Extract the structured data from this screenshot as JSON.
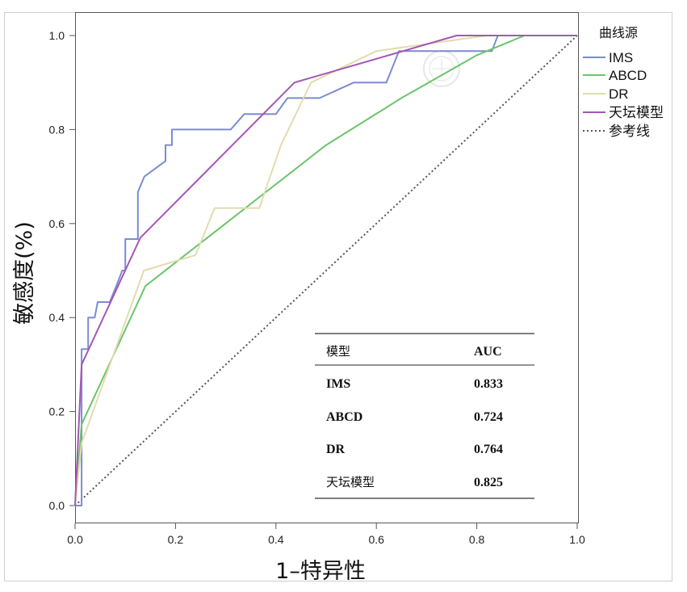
{
  "chart_data": {
    "type": "line",
    "xlabel": "1–特异性",
    "ylabel": "敏感度(%)",
    "xlim": [
      0,
      1
    ],
    "ylim": [
      0,
      1
    ],
    "x_ticks": [
      "0.0",
      "0.2",
      "0.4",
      "0.6",
      "0.8",
      "1.0"
    ],
    "y_ticks": [
      "0.0",
      "0.2",
      "0.4",
      "0.6",
      "0.8",
      "1.0"
    ],
    "grid": false,
    "legend": {
      "title": "曲线源",
      "placement": "right"
    },
    "series": [
      {
        "name": "IMS",
        "color": "#7b8ccf",
        "points": [
          [
            0,
            0
          ],
          [
            0.013,
            0
          ],
          [
            0.013,
            0.333
          ],
          [
            0.026,
            0.333
          ],
          [
            0.026,
            0.4
          ],
          [
            0.039,
            0.4
          ],
          [
            0.045,
            0.433
          ],
          [
            0.069,
            0.433
          ],
          [
            0.082,
            0.467
          ],
          [
            0.094,
            0.5
          ],
          [
            0.1,
            0.5
          ],
          [
            0.1,
            0.567
          ],
          [
            0.125,
            0.567
          ],
          [
            0.125,
            0.667
          ],
          [
            0.138,
            0.7
          ],
          [
            0.18,
            0.733
          ],
          [
            0.18,
            0.767
          ],
          [
            0.193,
            0.767
          ],
          [
            0.193,
            0.8
          ],
          [
            0.31,
            0.8
          ],
          [
            0.337,
            0.833
          ],
          [
            0.4,
            0.833
          ],
          [
            0.423,
            0.867
          ],
          [
            0.487,
            0.867
          ],
          [
            0.555,
            0.9
          ],
          [
            0.62,
            0.9
          ],
          [
            0.645,
            0.967
          ],
          [
            0.83,
            0.967
          ],
          [
            0.842,
            1.0
          ],
          [
            1,
            1
          ]
        ]
      },
      {
        "name": "ABCD",
        "color": "#6cc46c",
        "points": [
          [
            0,
            0
          ],
          [
            0.013,
            0.173
          ],
          [
            0.14,
            0.467
          ],
          [
            0.5,
            0.767
          ],
          [
            0.65,
            0.867
          ],
          [
            0.8,
            0.958
          ],
          [
            0.895,
            1.0
          ],
          [
            1,
            1
          ]
        ]
      },
      {
        "name": "DR",
        "color": "#e2dcae",
        "points": [
          [
            0,
            0
          ],
          [
            0.013,
            0.133
          ],
          [
            0.137,
            0.5
          ],
          [
            0.24,
            0.533
          ],
          [
            0.278,
            0.633
          ],
          [
            0.367,
            0.633
          ],
          [
            0.41,
            0.767
          ],
          [
            0.47,
            0.9
          ],
          [
            0.6,
            0.967
          ],
          [
            0.82,
            1.0
          ],
          [
            1,
            1
          ]
        ]
      },
      {
        "name": "天坛模型",
        "color": "#a457b4",
        "points": [
          [
            0,
            0
          ],
          [
            0.013,
            0.3
          ],
          [
            0.13,
            0.57
          ],
          [
            0.437,
            0.9
          ],
          [
            0.76,
            1.0
          ],
          [
            1,
            1
          ]
        ]
      }
    ],
    "reference_line": {
      "name": "参考线",
      "color": "#555555",
      "points": [
        [
          0,
          0
        ],
        [
          1,
          1
        ]
      ]
    },
    "table": {
      "headers": [
        "模型",
        "AUC"
      ],
      "rows": [
        [
          "IMS",
          "0.833"
        ],
        [
          "ABCD",
          "0.724"
        ],
        [
          "DR",
          "0.764"
        ],
        [
          "天坛模型",
          "0.825"
        ]
      ]
    }
  }
}
